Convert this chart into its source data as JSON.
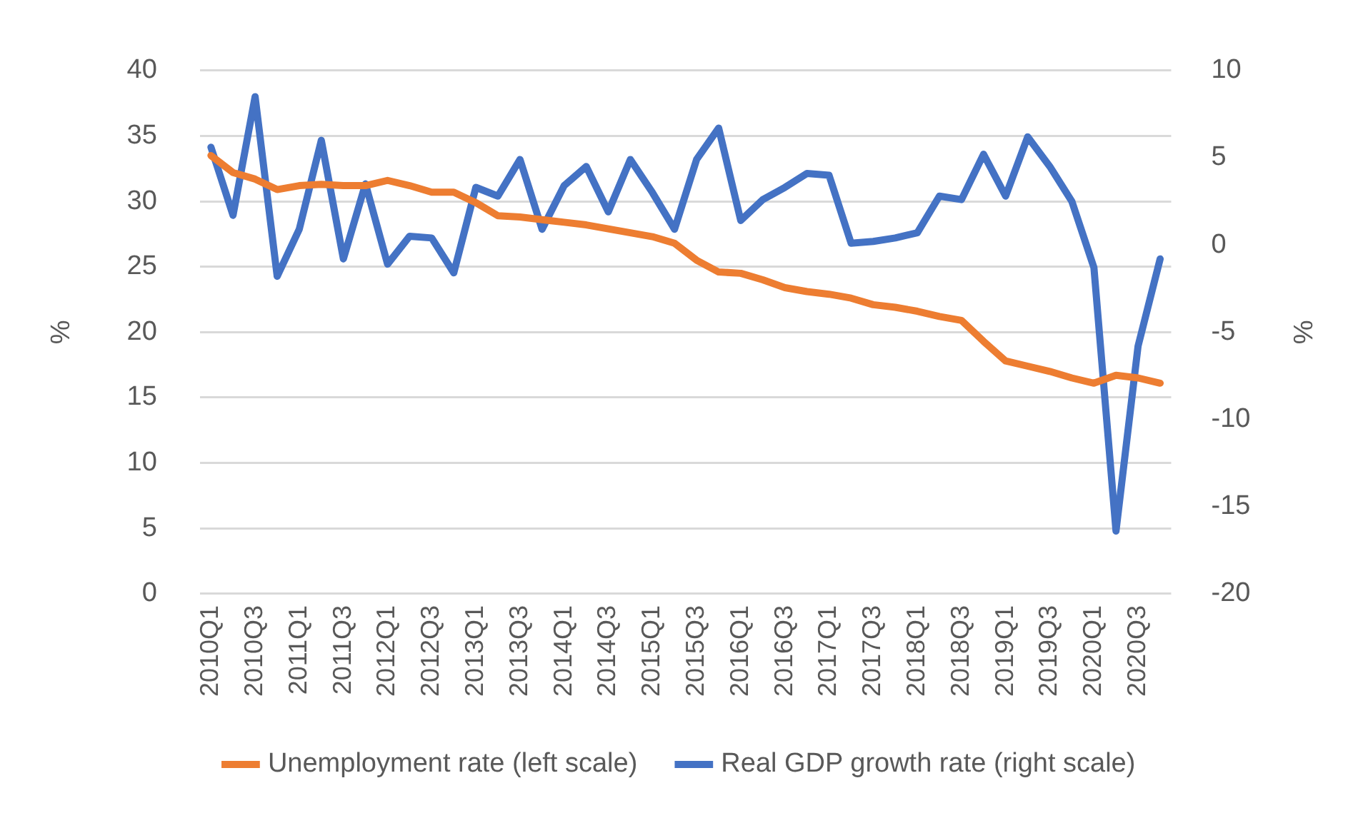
{
  "chart_data": {
    "type": "line",
    "ylabel": "%",
    "y2label": "%",
    "categories": [
      "2010Q1",
      null,
      "2010Q3",
      null,
      "2011Q1",
      null,
      "2011Q3",
      null,
      "2012Q1",
      null,
      "2012Q3",
      null,
      "2013Q1",
      null,
      "2013Q3",
      null,
      "2014Q1",
      null,
      "2014Q3",
      null,
      "2015Q1",
      null,
      "2015Q3",
      null,
      "2016Q1",
      null,
      "2016Q3",
      null,
      "2017Q1",
      null,
      "2017Q3",
      null,
      "2018Q1",
      null,
      "2018Q3",
      null,
      "2019Q1",
      null,
      "2019Q3",
      null,
      "2020Q1",
      null,
      "2020Q3",
      null
    ],
    "series": [
      {
        "name": "Unemployment rate (left scale)",
        "color": "#ed7d31",
        "values": [
          33.5,
          32.2,
          31.7,
          30.9,
          31.2,
          31.3,
          31.2,
          31.2,
          31.6,
          31.2,
          30.7,
          30.7,
          29.9,
          28.9,
          28.8,
          28.6,
          28.4,
          28.2,
          27.9,
          27.6,
          27.3,
          26.8,
          25.5,
          24.6,
          24.5,
          24.0,
          23.4,
          23.1,
          22.9,
          22.6,
          22.1,
          21.9,
          21.6,
          21.2,
          20.9,
          19.3,
          17.8,
          17.4,
          17.0,
          16.5,
          16.1,
          16.7,
          16.5,
          16.1
        ]
      },
      {
        "name": "Real GDP growth rate (right scale)",
        "color": "#4472c4",
        "axis": "y2",
        "values": [
          5.6,
          1.7,
          8.5,
          -1.8,
          0.9,
          6.0,
          -0.8,
          3.5,
          -1.1,
          0.5,
          0.4,
          -1.6,
          3.3,
          2.8,
          4.9,
          0.9,
          3.4,
          4.5,
          1.9,
          4.9,
          3.0,
          0.9,
          4.9,
          6.7,
          1.4,
          2.6,
          3.3,
          4.1,
          4.0,
          0.1,
          0.2,
          0.4,
          0.7,
          2.8,
          2.6,
          5.2,
          2.8,
          6.2,
          4.5,
          2.5,
          -1.3,
          -16.4,
          -5.8,
          -0.8
        ]
      }
    ],
    "ylim": [
      0,
      40
    ],
    "yticks": [
      0,
      5,
      10,
      15,
      20,
      25,
      30,
      35,
      40
    ],
    "y2lim": [
      -20,
      10
    ],
    "y2ticks": [
      -20,
      -15,
      -10,
      -5,
      0,
      5,
      10
    ],
    "grid": "y",
    "legend": "bottom",
    "marker": "none",
    "line_style": "solid"
  }
}
